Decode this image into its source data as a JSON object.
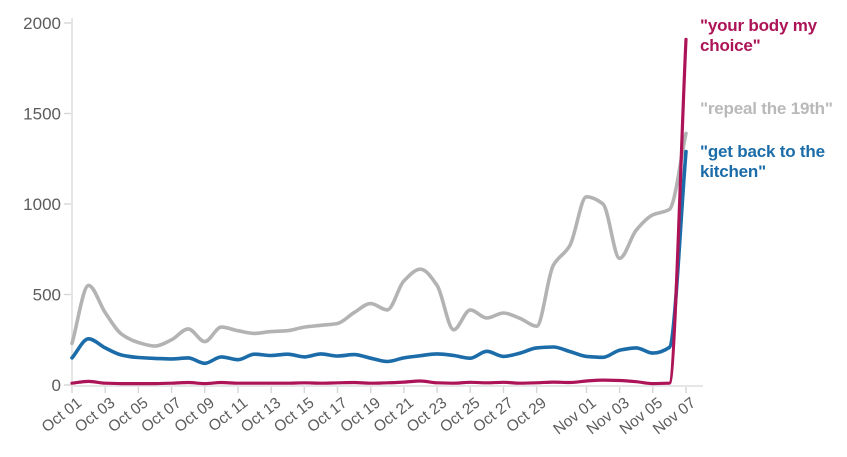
{
  "chart_data": {
    "type": "line",
    "title": "",
    "xlabel": "",
    "ylabel": "",
    "ylim": [
      0,
      2000
    ],
    "grid": false,
    "legend_position": "right",
    "y_ticks": [
      0,
      500,
      1000,
      1500,
      2000
    ],
    "x_tick_labels": [
      "Oct 01",
      "Oct 03",
      "Oct 05",
      "Oct 07",
      "Oct 09",
      "Oct 11",
      "Oct 13",
      "Oct 15",
      "Oct 17",
      "Oct 19",
      "Oct 21",
      "Oct 23",
      "Oct 25",
      "Oct 27",
      "Oct 29",
      "Nov 01",
      "Nov 03",
      "Nov 05",
      "Nov 07"
    ],
    "dates": [
      "Oct 01",
      "Oct 02",
      "Oct 03",
      "Oct 04",
      "Oct 05",
      "Oct 06",
      "Oct 07",
      "Oct 08",
      "Oct 09",
      "Oct 10",
      "Oct 11",
      "Oct 12",
      "Oct 13",
      "Oct 14",
      "Oct 15",
      "Oct 16",
      "Oct 17",
      "Oct 18",
      "Oct 19",
      "Oct 20",
      "Oct 21",
      "Oct 22",
      "Oct 23",
      "Oct 24",
      "Oct 25",
      "Oct 26",
      "Oct 27",
      "Oct 28",
      "Oct 29",
      "Oct 30",
      "Oct 31",
      "Nov 01",
      "Nov 02",
      "Nov 03",
      "Nov 04",
      "Nov 05",
      "Nov 06",
      "Nov 07"
    ],
    "series": [
      {
        "name": "\"repeal the 19th\"",
        "color": "#b3b3b3",
        "values": [
          230,
          550,
          400,
          280,
          235,
          215,
          250,
          310,
          240,
          320,
          300,
          285,
          295,
          300,
          320,
          330,
          340,
          400,
          450,
          415,
          575,
          640,
          550,
          305,
          415,
          370,
          398,
          368,
          325,
          660,
          770,
          1040,
          1000,
          700,
          855,
          940,
          970,
          1390
        ]
      },
      {
        "name": "\"get back to the kitchen\"",
        "color": "#1b6ca8",
        "values": [
          150,
          255,
          205,
          165,
          152,
          147,
          144,
          150,
          120,
          155,
          140,
          170,
          163,
          170,
          155,
          172,
          160,
          168,
          148,
          130,
          150,
          162,
          172,
          163,
          148,
          186,
          158,
          176,
          205,
          210,
          185,
          158,
          153,
          192,
          205,
          176,
          208,
          1290
        ]
      },
      {
        "name": "\"your body my choice\"",
        "color": "#ad1457",
        "values": [
          10,
          20,
          10,
          8,
          8,
          8,
          10,
          14,
          8,
          14,
          10,
          10,
          10,
          10,
          12,
          10,
          12,
          14,
          10,
          12,
          16,
          22,
          12,
          10,
          15,
          12,
          15,
          10,
          12,
          16,
          14,
          22,
          27,
          25,
          18,
          8,
          10,
          1910
        ]
      }
    ]
  },
  "labels": {
    "series_right": [
      {
        "text": "\"your body my choice\"",
        "color": "#ad1457"
      },
      {
        "text": "\"repeal the 19th\"",
        "color": "#b9b9b9"
      },
      {
        "text": "\"get back to the kitchen\"",
        "color": "#1b6ca8"
      }
    ]
  },
  "axis": {
    "line_color": "#e3e3e3",
    "tick_color": "#d8d8d8",
    "text_color": "#5c5c5c"
  }
}
